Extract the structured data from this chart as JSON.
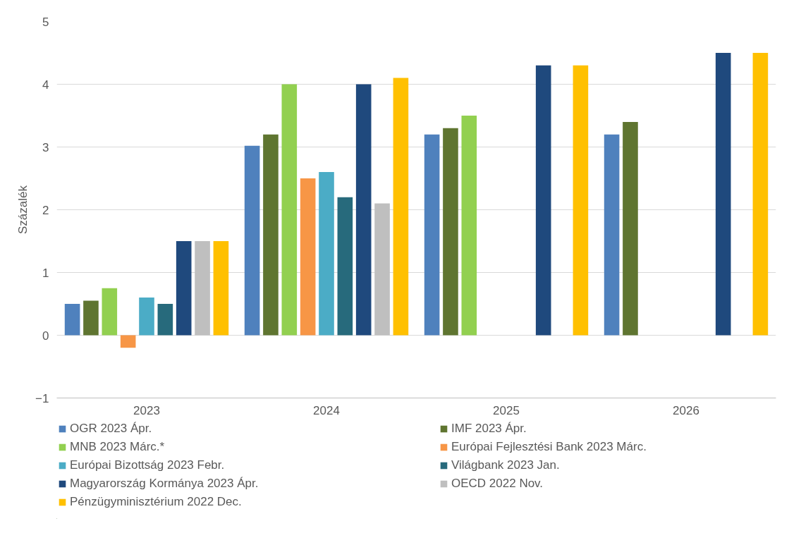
{
  "chart_data": {
    "type": "bar",
    "ylabel": "Százalék",
    "categories": [
      "2023",
      "2024",
      "2025",
      "2026"
    ],
    "ylim": [
      -1,
      5
    ],
    "yticks": [
      -1,
      0,
      1,
      2,
      3,
      4,
      5
    ],
    "grid": "y",
    "legend": "bottom",
    "series": [
      {
        "name": "OGR 2023 Ápr.",
        "color": "#4f81bd",
        "values": [
          0.5,
          3.02,
          3.2,
          3.2
        ]
      },
      {
        "name": "IMF 2023 Ápr.",
        "color": "#5f7530",
        "values": [
          0.55,
          3.2,
          3.3,
          3.4
        ]
      },
      {
        "name": "MNB 2023 Márc.*",
        "color": "#92d050",
        "values": [
          0.75,
          4.0,
          3.5,
          null
        ]
      },
      {
        "name": "Európai Fejlesztési Bank 2023 Márc.",
        "color": "#f79646",
        "values": [
          -0.2,
          2.5,
          null,
          null
        ]
      },
      {
        "name": "Európai Bizottság 2023 Febr.",
        "color": "#4bacc6",
        "values": [
          0.6,
          2.6,
          null,
          null
        ]
      },
      {
        "name": "Világbank 2023 Jan.",
        "color": "#276a7c",
        "values": [
          0.5,
          2.2,
          null,
          null
        ]
      },
      {
        "name": "Magyarország Kormánya 2023 Ápr.",
        "color": "#1f497d",
        "values": [
          1.5,
          4.0,
          4.3,
          4.5
        ]
      },
      {
        "name": "OECD 2022 Nov.",
        "color": "#bfbfbf",
        "values": [
          1.5,
          2.1,
          null,
          null
        ]
      },
      {
        "name": "Pénzügyminisztérium 2022 Dec.",
        "color": "#ffc000",
        "values": [
          1.5,
          4.1,
          4.3,
          4.5
        ]
      }
    ]
  }
}
